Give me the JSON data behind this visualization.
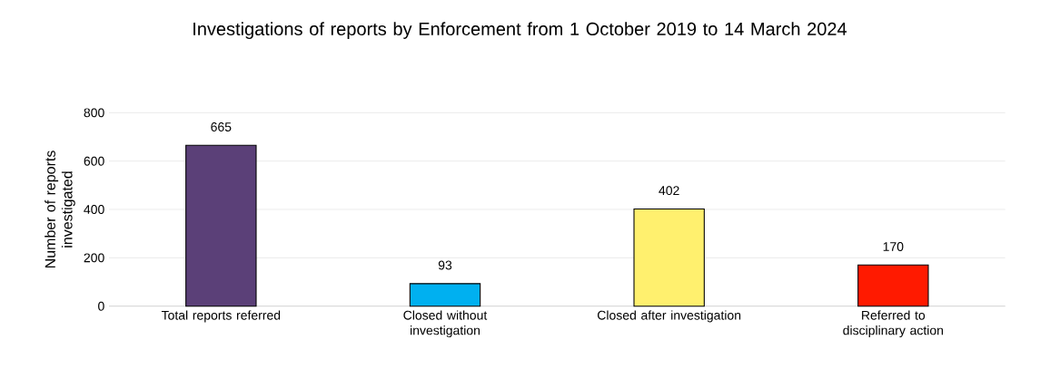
{
  "chart_data": {
    "type": "bar",
    "title": "Investigations of reports by Enforcement from 1 October 2019 to 14 March 2024",
    "ylabel": "Number of reports investigated",
    "categories": [
      "Total reports referred",
      "Closed without investigation",
      "Closed after investigation",
      "Referred to disciplinary action"
    ],
    "values": [
      665,
      93,
      402,
      170
    ],
    "colors": [
      "#5b4078",
      "#00b0f0",
      "#fff06e",
      "#ff1a00"
    ],
    "ylim": [
      0,
      800
    ],
    "yticks": [
      0,
      200,
      400,
      600,
      800
    ],
    "grid": "y",
    "data_labels": true
  }
}
